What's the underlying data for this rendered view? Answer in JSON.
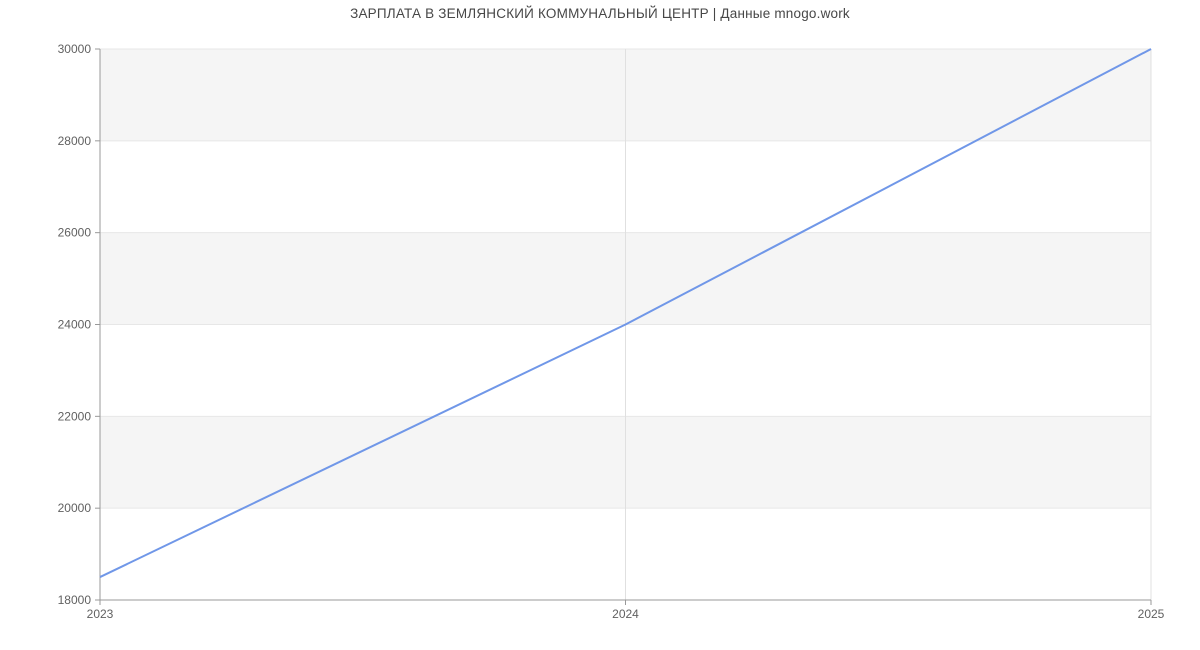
{
  "chart_data": {
    "type": "line",
    "title": "ЗАРПЛАТА В ЗЕМЛЯНСКИЙ КОММУНАЛЬНЫЙ ЦЕНТР | Данные mnogo.work",
    "x": [
      2023,
      2024,
      2025
    ],
    "y": [
      18500,
      24000,
      30000
    ],
    "xticks": [
      "2023",
      "2024",
      "2025"
    ],
    "yticks": [
      18000,
      20000,
      22000,
      24000,
      26000,
      28000,
      30000
    ],
    "xlim": [
      2023,
      2025
    ],
    "ylim": [
      18000,
      30000
    ],
    "xlabel": "",
    "ylabel": "",
    "grid": true,
    "legend": false,
    "alternating_bands": true,
    "colors": {
      "line": "#7097e8",
      "band": "#f5f5f5",
      "h_gridline": "#e7e7e7",
      "v_gridline": "#e0e0e0",
      "axis": "#999999",
      "tick_label": "#616161",
      "title": "#474747"
    }
  }
}
